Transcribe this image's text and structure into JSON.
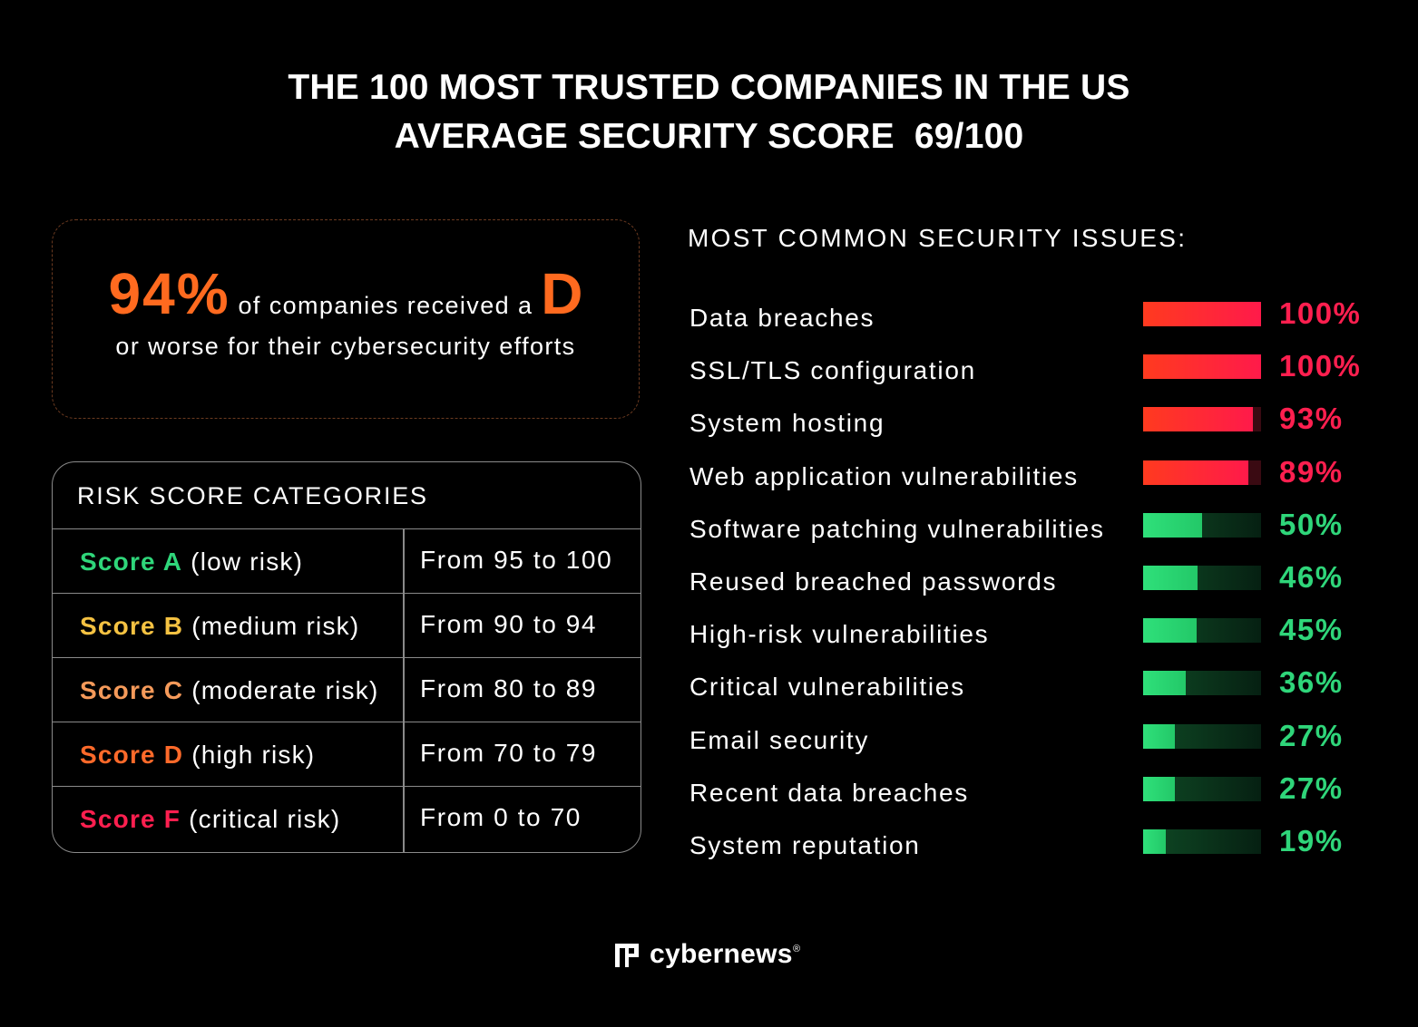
{
  "title": {
    "line1": "THE 100 MOST TRUSTED COMPANIES IN THE US",
    "line2": "AVERAGE SECURITY SCORE  69/100"
  },
  "highlight": {
    "percent": "94%",
    "text_a": " of companies received a ",
    "grade": "D",
    "text_b": "or worse for their cybersecurity efforts"
  },
  "risk_table": {
    "title": "RISK SCORE CATEGORIES",
    "rows": [
      {
        "grade": "Score A",
        "risk": " (low risk)",
        "range": "From 95 to 100",
        "color": "#2fd67a"
      },
      {
        "grade": "Score B",
        "risk": " (medium risk)",
        "range": "From 90 to 94",
        "color": "#f5c242"
      },
      {
        "grade": "Score C",
        "risk": " (moderate risk)",
        "range": "From 80 to 89",
        "color": "#f59a5a"
      },
      {
        "grade": "Score D",
        "risk": " (high risk)",
        "range": "From 70 to 79",
        "color": "#ff6a2a"
      },
      {
        "grade": "Score F",
        "risk": " (critical risk)",
        "range": "From 0 to 70",
        "color": "#ff1f4f"
      }
    ]
  },
  "chart_data": {
    "type": "bar",
    "title": "MOST COMMON SECURITY ISSUES:",
    "categories": [
      "Data breaches",
      "SSL/TLS configuration",
      "System hosting",
      "Web application vulnerabilities",
      "Software patching vulnerabilities",
      "Reused breached passwords",
      "High-risk vulnerabilities",
      "Critical vulnerabilities",
      "Email security",
      "Recent data breaches",
      "System reputation"
    ],
    "values": [
      100,
      100,
      93,
      89,
      50,
      46,
      45,
      36,
      27,
      27,
      19
    ],
    "labels": [
      "100%",
      "100%",
      "93%",
      "89%",
      "50%",
      "46%",
      "45%",
      "36%",
      "27%",
      "27%",
      "19%"
    ],
    "xlim": [
      0,
      100
    ],
    "unit": "%",
    "colors": {
      "high_bar": "#ff2a2a",
      "high_text": "#ff1f4f",
      "low_bar": "#2fe07a",
      "low_text": "#2fd67a",
      "low_track": "#0b3a1d",
      "high_track": "#3a0a12"
    }
  },
  "logo": {
    "name": "cybernews",
    "mark": "®"
  }
}
